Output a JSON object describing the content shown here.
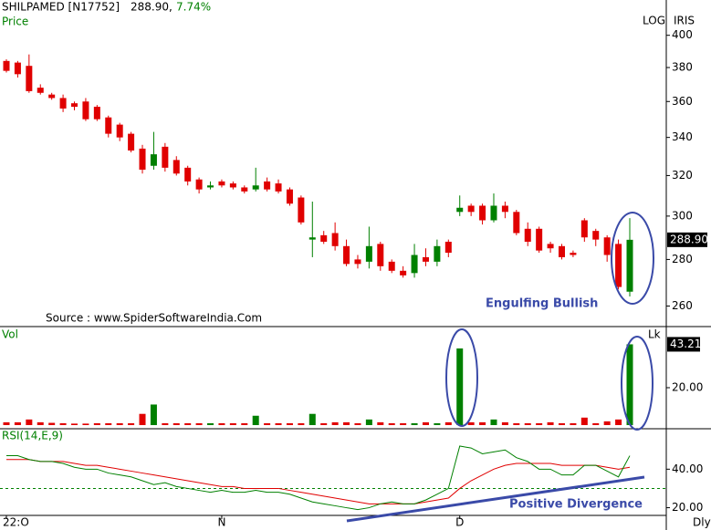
{
  "header": {
    "symbol": "SHILPAMED [N17752]",
    "last": "288.90,",
    "change": "7.74%"
  },
  "chart_data": [
    {
      "type": "candlestick",
      "panel_label": "Price",
      "log_label": "LOG",
      "scale_label": "IRIS",
      "log": true,
      "source": "Source : www.SpiderSoftwareIndia.Com",
      "annotation": "Engulfing Bullish",
      "up_color": "#008000",
      "down_color": "#e00000",
      "categories": [
        "22:O",
        null,
        null,
        null,
        null,
        null,
        null,
        null,
        null,
        null,
        null,
        null,
        null,
        null,
        null,
        null,
        null,
        null,
        null,
        "N",
        null,
        null,
        null,
        null,
        null,
        null,
        null,
        null,
        null,
        null,
        null,
        null,
        null,
        null,
        null,
        null,
        null,
        null,
        null,
        null,
        "D",
        null,
        null,
        null,
        null,
        null,
        null,
        null,
        null,
        null,
        null,
        null,
        null,
        null,
        null,
        null
      ],
      "open": [
        384,
        383,
        381,
        368,
        364,
        362,
        359,
        360,
        357,
        351,
        347,
        342,
        334,
        325,
        335,
        328,
        324,
        318,
        314,
        317,
        316,
        314,
        313,
        317,
        316,
        313,
        309,
        289,
        291,
        292,
        286,
        280,
        279,
        287,
        279,
        275,
        274,
        281,
        279,
        288,
        302,
        305,
        305,
        298,
        305,
        302,
        294,
        294,
        287,
        286,
        283,
        298,
        293,
        290,
        287,
        266
      ],
      "high": [
        385,
        384,
        388,
        370,
        365,
        364,
        360,
        362,
        358,
        352,
        348,
        343,
        336,
        343,
        337,
        330,
        325,
        319,
        317,
        318,
        317,
        315,
        324,
        319,
        318,
        314,
        310,
        307,
        293,
        297,
        289,
        282,
        295,
        288,
        280,
        277,
        287,
        285,
        289,
        289,
        310,
        306,
        306,
        311,
        307,
        303,
        297,
        295,
        288,
        287,
        284,
        299,
        294,
        291,
        289,
        299
      ],
      "low": [
        377,
        374,
        365,
        364,
        361,
        354,
        355,
        349,
        349,
        340,
        338,
        332,
        321,
        323,
        322,
        320,
        315,
        311,
        313,
        314,
        313,
        311,
        312,
        312,
        311,
        305,
        296,
        281,
        287,
        284,
        277,
        276,
        276,
        275,
        274,
        272,
        272,
        277,
        277,
        281,
        300,
        300,
        296,
        297,
        299,
        291,
        286,
        283,
        283,
        280,
        281,
        288,
        286,
        279,
        267,
        264
      ],
      "close": [
        378,
        376,
        366,
        365,
        362,
        356,
        357,
        350,
        350,
        342,
        340,
        333,
        323,
        331,
        324,
        321,
        317,
        313,
        315,
        315,
        314,
        312,
        315,
        313,
        312,
        306,
        297,
        290,
        288,
        286,
        278,
        278,
        286,
        277,
        275,
        273,
        282,
        279,
        286,
        283,
        304,
        302,
        298,
        305,
        302,
        292,
        288,
        284,
        285,
        281,
        282,
        290,
        289,
        282,
        268,
        288.9
      ],
      "close_label": "288.90",
      "ylim": [
        252,
        411
      ],
      "yticks": [
        260,
        280,
        300,
        320,
        340,
        360,
        380,
        400
      ]
    },
    {
      "type": "bar",
      "panel_label": "Vol",
      "unit_label": "Lk",
      "values": [
        1.5,
        1.5,
        3,
        1.5,
        1.2,
        1,
        0.8,
        0.8,
        1,
        1,
        1,
        1,
        6,
        11,
        1,
        1,
        1,
        1,
        1,
        1,
        1,
        1,
        5,
        1,
        1,
        1,
        1,
        6,
        1,
        1.5,
        1.5,
        1,
        3,
        1.5,
        1,
        1,
        1,
        1.5,
        1,
        1.5,
        41,
        1.5,
        1.5,
        3,
        1.5,
        1,
        1,
        1,
        1.5,
        1,
        1,
        4,
        1,
        2,
        3,
        43.21
      ],
      "ylim": [
        0,
        52.7
      ],
      "yticks": [
        {
          "value": 20,
          "label": "20.00"
        }
      ]
    },
    {
      "type": "line",
      "panel_label": "RSI(14,E,9)",
      "annotation": "Positive Divergence",
      "x_end_label": "Dly",
      "series": [
        {
          "color": "#008000",
          "values": [
            47,
            47,
            45,
            44,
            44,
            43,
            41,
            40,
            40,
            38,
            37,
            36,
            34,
            32,
            33,
            31,
            30,
            29,
            28,
            29,
            28,
            28,
            29,
            28,
            28,
            27,
            25,
            23,
            22,
            21,
            20,
            19,
            20,
            22,
            23,
            22,
            22,
            24,
            27,
            30,
            52,
            51,
            48,
            49,
            50,
            46,
            44,
            40,
            40,
            37,
            37,
            42,
            42,
            39,
            36,
            47
          ]
        },
        {
          "color": "#e00000",
          "values": [
            45,
            45,
            45,
            44,
            44,
            44,
            43,
            42,
            42,
            41,
            40,
            39,
            38,
            37,
            36,
            35,
            34,
            33,
            32,
            31,
            31,
            30,
            30,
            30,
            30,
            29,
            28,
            27,
            26,
            25,
            24,
            23,
            22,
            22,
            22,
            22,
            22,
            23,
            24,
            25,
            30,
            34,
            37,
            40,
            42,
            43,
            43,
            43,
            43,
            42,
            42,
            42,
            42,
            41,
            40,
            41
          ]
        }
      ],
      "ref_line": 30,
      "ylim": [
        16,
        61
      ],
      "yticks": [
        {
          "value": 20,
          "label": "20.00"
        },
        {
          "value": 40,
          "label": "40.00"
        }
      ]
    }
  ]
}
